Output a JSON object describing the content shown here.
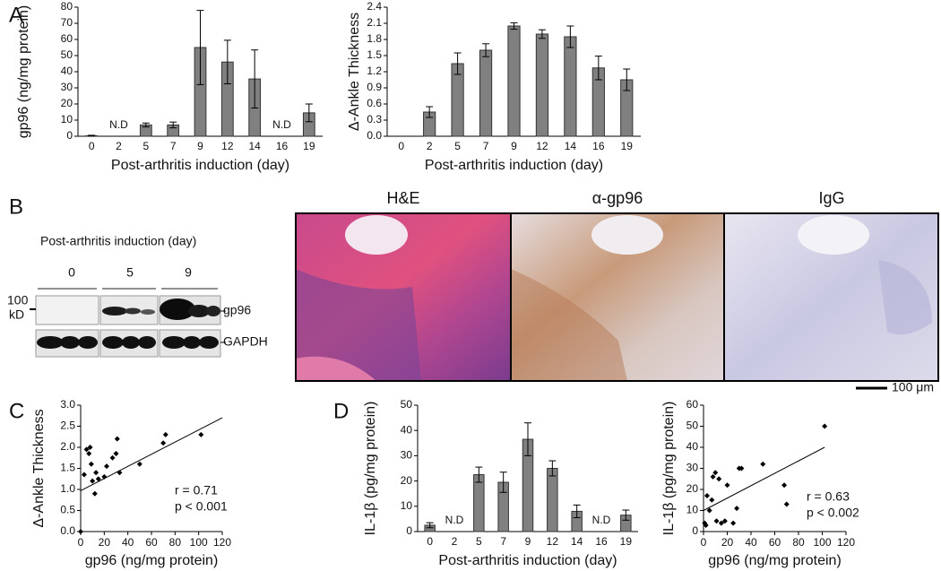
{
  "panel_labels": [
    "A",
    "B",
    "C",
    "D"
  ],
  "blot": {
    "title": "Post-arthritis induction (day)",
    "lanes": [
      "0",
      "5",
      "9"
    ],
    "marker": "100",
    "marker_unit": "kD",
    "rows": [
      "gp96",
      "GAPDH"
    ]
  },
  "micrographs": {
    "titles": [
      "H&E",
      "α-gp96",
      "IgG"
    ],
    "scale_bar": "100 μm"
  },
  "chart_data": [
    {
      "type": "bar",
      "ylabel": "gp96 (ng/mg protein)",
      "xlabel": "Post-arthritis induction (day)",
      "categories": [
        "0",
        "2",
        "5",
        "7",
        "9",
        "12",
        "14",
        "16",
        "19"
      ],
      "values": [
        0.3,
        null,
        7,
        7,
        55,
        46,
        35.5,
        null,
        14.5
      ],
      "errors": [
        0.3,
        null,
        1.2,
        1.8,
        23,
        13.5,
        18,
        null,
        5.5
      ],
      "color": "#808080",
      "ylim": [
        0,
        80
      ],
      "yticks": [
        0,
        10,
        20,
        30,
        40,
        50,
        60,
        70,
        80
      ],
      "annotations": [
        {
          "text": "N.D",
          "at": "2"
        },
        {
          "text": "N.D",
          "at": "16"
        }
      ]
    },
    {
      "type": "bar",
      "ylabel": "Δ-Ankle Thickness",
      "xlabel": "Post-arthritis induction (day)",
      "categories": [
        "0",
        "2",
        "5",
        "7",
        "9",
        "12",
        "14",
        "16",
        "19"
      ],
      "values": [
        0,
        0.45,
        1.35,
        1.6,
        2.05,
        1.9,
        1.85,
        1.27,
        1.05
      ],
      "errors": [
        null,
        0.1,
        0.2,
        0.12,
        0.06,
        0.08,
        0.2,
        0.22,
        0.2
      ],
      "color": "#808080",
      "ylim": [
        0,
        2.4
      ],
      "yticks": [
        {
          "value": 0,
          "label": "0.0"
        },
        0.3,
        0.6,
        0.9,
        1.2,
        1.5,
        1.8,
        2.1,
        2.4
      ]
    },
    {
      "type": "scatter",
      "ylabel": "Δ-Ankle Thickness",
      "xlabel": "gp96 (ng/mg protein)",
      "x": [
        0,
        3,
        5,
        7,
        8,
        9,
        10,
        12,
        13,
        15,
        20,
        22,
        27,
        30,
        31,
        33,
        50,
        70,
        72,
        102
      ],
      "values": [
        0,
        1.35,
        1.95,
        1.85,
        2.0,
        1.6,
        1.2,
        0.9,
        1.4,
        1.25,
        1.3,
        1.55,
        1.75,
        1.85,
        2.2,
        1.4,
        1.6,
        2.1,
        2.3,
        2.3
      ],
      "fit": {
        "x": [
          0,
          120
        ],
        "y": [
          0.97,
          2.7
        ]
      },
      "color": "#000000",
      "xlim": [
        0,
        120
      ],
      "xticks": [
        0,
        20,
        40,
        60,
        80,
        100,
        120
      ],
      "ylim": [
        0,
        3
      ],
      "yticks": [
        {
          "value": 0,
          "label": "0.0"
        },
        0.5,
        {
          "value": 1,
          "label": "1.0"
        },
        1.5,
        {
          "value": 2,
          "label": "2.0"
        },
        2.5,
        {
          "value": 3,
          "label": "3.0"
        }
      ],
      "annotations": [
        "r = 0.71",
        "p < 0.001"
      ]
    },
    {
      "type": "bar",
      "ylabel": "IL-1β (pg/mg protein)",
      "xlabel": "Post-arthritis induction (day)",
      "categories": [
        "0",
        "2",
        "5",
        "7",
        "9",
        "12",
        "14",
        "16",
        "19"
      ],
      "values": [
        2.5,
        null,
        22.5,
        19.5,
        36.5,
        25,
        8,
        null,
        6.5
      ],
      "errors": [
        1,
        null,
        3,
        4,
        6.5,
        3,
        2.5,
        null,
        2
      ],
      "color": "#808080",
      "ylim": [
        0,
        50
      ],
      "yticks": [
        0,
        10,
        20,
        30,
        40,
        50
      ],
      "annotations": [
        {
          "text": "N.D",
          "at": "2"
        },
        {
          "text": "N.D",
          "at": "16"
        }
      ]
    },
    {
      "type": "scatter",
      "ylabel": "IL-1β (pg/mg protein)",
      "xlabel": "gp96 (ng/mg protein)",
      "x": [
        1,
        2,
        3,
        5,
        7,
        8,
        10,
        11,
        13,
        15,
        18,
        20,
        25,
        28,
        30,
        32,
        50,
        68,
        70,
        102
      ],
      "values": [
        4,
        3,
        17,
        10,
        15,
        26,
        28,
        5,
        25,
        4,
        5,
        22,
        4,
        11,
        30,
        30,
        32,
        22,
        13,
        50
      ],
      "fit": {
        "x": [
          0,
          102
        ],
        "y": [
          10,
          40
        ]
      },
      "color": "#000000",
      "xlim": [
        0,
        120
      ],
      "xticks": [
        0,
        20,
        40,
        60,
        80,
        100,
        120
      ],
      "ylim": [
        0,
        60
      ],
      "yticks": [
        0,
        10,
        20,
        30,
        40,
        50,
        60
      ],
      "annotations": [
        "r = 0.63",
        "p < 0.002"
      ]
    }
  ]
}
